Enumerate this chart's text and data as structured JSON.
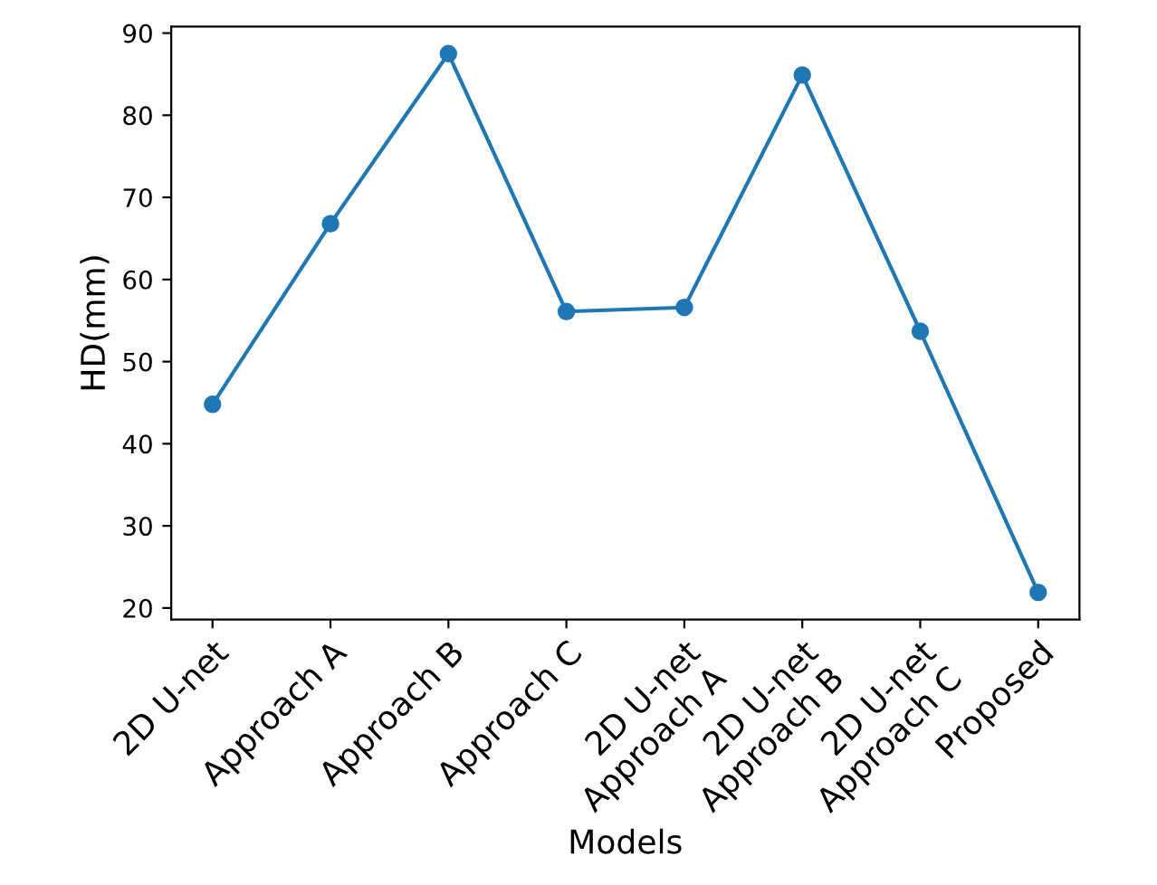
{
  "chart_data": {
    "type": "line",
    "xlabel": "Models",
    "ylabel": "HD(mm)",
    "categories": [
      "2D U-net",
      "Approach A",
      "Approach B",
      "Approach C",
      "2D U-net\nApproach A",
      "2D U-net\nApproach B",
      "2D U-net\nApproach C",
      "Proposed"
    ],
    "series": [
      {
        "color": "#1f77b4",
        "values": [
          44.8,
          66.8,
          87.5,
          56.1,
          56.6,
          84.9,
          53.7,
          21.9
        ]
      }
    ],
    "ylim": [
      18.6,
      90.8
    ],
    "yticks": [
      20,
      30,
      40,
      50,
      60,
      70,
      80,
      90
    ],
    "marker": "circle",
    "line_style": "solid",
    "grid": false,
    "legend": false
  }
}
